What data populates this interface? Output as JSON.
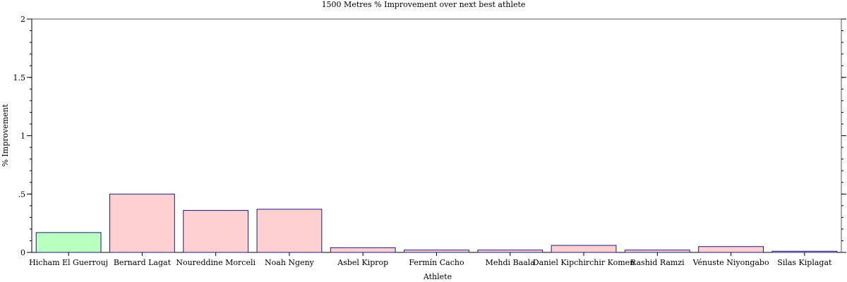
{
  "chart_data": {
    "type": "bar",
    "title": "1500 Metres % Improvement over next best athlete",
    "xlabel": "Athlete",
    "ylabel": "% Improvement",
    "categories": [
      "Hicham El Guerrouj",
      "Bernard Lagat",
      "Noureddine Morceli",
      "Noah Ngeny",
      "Asbel Kiprop",
      "Fermín Cacho",
      "Mehdi Baala",
      "Daniel Kipchirchir Komen",
      "Rashid Ramzi",
      "Vénuste Niyongabo",
      "Silas Kiplagat"
    ],
    "values": [
      0.17,
      0.5,
      0.36,
      0.37,
      0.04,
      0.02,
      0.02,
      0.06,
      0.02,
      0.05,
      0.01
    ],
    "ylim": [
      0,
      2
    ],
    "yticks": [
      {
        "value": 0,
        "label": "0"
      },
      {
        "value": 0.5,
        "label": ".5"
      },
      {
        "value": 1,
        "label": "1"
      },
      {
        "value": 1.5,
        "label": "1.5"
      },
      {
        "value": 2,
        "label": "2"
      }
    ],
    "highlight_index": 0,
    "grid": false,
    "colors": {
      "bar_fill": "#ffd0d0",
      "highlight_fill": "#b8ffc0",
      "bar_stroke": "#1a1a80",
      "axis": "#000000"
    }
  }
}
